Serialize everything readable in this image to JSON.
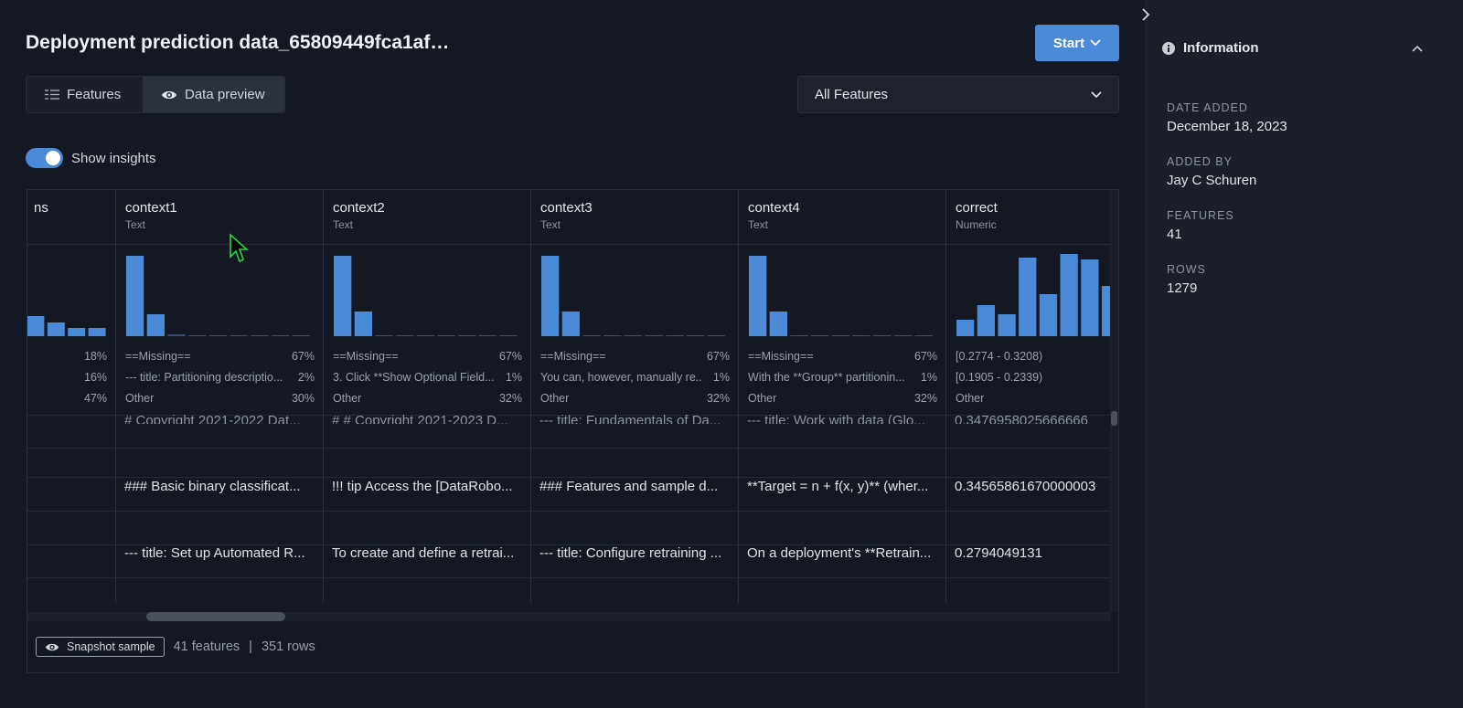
{
  "title": "Deployment prediction data_65809449fca1af…",
  "start_button": "Start",
  "tabs": [
    {
      "label": "Features",
      "icon": "list-icon"
    },
    {
      "label": "Data preview",
      "icon": "eye-icon"
    }
  ],
  "feature_filter": "All Features",
  "show_insights_label": "Show insights",
  "show_insights_on": true,
  "columns": [
    {
      "name": "ns",
      "type": "",
      "hist": [
        22,
        15,
        9,
        9
      ],
      "stats": [
        [
          "",
          "18%"
        ],
        [
          "",
          "16%"
        ],
        [
          "",
          "47%"
        ]
      ]
    },
    {
      "name": "context1",
      "type": "Text",
      "hist": [
        88,
        24,
        2,
        1,
        1,
        1,
        1,
        1,
        1
      ],
      "stats": [
        [
          "==Missing==",
          "67%"
        ],
        [
          "--- title: Partitioning descriptio...",
          "2%"
        ],
        [
          "Other",
          "30%"
        ]
      ]
    },
    {
      "name": "context2",
      "type": "Text",
      "hist": [
        88,
        27,
        1,
        1,
        1,
        1,
        1,
        1,
        1
      ],
      "stats": [
        [
          "==Missing==",
          "67%"
        ],
        [
          "3. Click **Show Optional Field...",
          "1%"
        ],
        [
          "Other",
          "32%"
        ]
      ]
    },
    {
      "name": "context3",
      "type": "Text",
      "hist": [
        88,
        27,
        1,
        1,
        1,
        1,
        1,
        1,
        1
      ],
      "stats": [
        [
          "==Missing==",
          "67%"
        ],
        [
          "You can, however, manually re...",
          "1%"
        ],
        [
          "Other",
          "32%"
        ]
      ]
    },
    {
      "name": "context4",
      "type": "Text",
      "hist": [
        88,
        27,
        1,
        1,
        1,
        1,
        1,
        1,
        1
      ],
      "stats": [
        [
          "==Missing==",
          "67%"
        ],
        [
          "With the **Group** partitionin...",
          "1%"
        ],
        [
          "Other",
          "32%"
        ]
      ]
    },
    {
      "name": "correct",
      "type": "Numeric",
      "hist": [
        18,
        34,
        24,
        86,
        46,
        90,
        84,
        55,
        15
      ],
      "stats": [
        [
          "[0.2774 - 0.3208)",
          ""
        ],
        [
          "[0.1905 - 0.2339)",
          ""
        ],
        [
          "Other",
          ""
        ]
      ]
    }
  ],
  "rows": [
    [
      "",
      "# Copyright 2021-2022 Dat...",
      "# # Copyright 2021-2023 D...",
      "--- title: Fundamentals of Da...",
      "--- title: Work with data (Glo...",
      "0.3476958025666666"
    ],
    [
      "",
      "",
      "",
      "",
      "",
      ""
    ],
    [
      "",
      "### Basic binary classificat...",
      "!!! tip Access the [DataRobo...",
      "### Features and sample d...",
      "**Target = n + f(x, y)** (wher...",
      "0.34565861670000003"
    ],
    [
      "",
      "",
      "",
      "",
      "",
      ""
    ],
    [
      "",
      "--- title: Set up Automated R...",
      "To create and define a retrai...",
      "--- title: Configure retraining ...",
      "On a deployment's **Retrain...",
      "0.2794049131"
    ],
    [
      "",
      "",
      "",
      "",
      "",
      ""
    ]
  ],
  "footer": {
    "snapshot_label": "Snapshot sample",
    "features_count": "41 features",
    "separator": "|",
    "rows_count": "351 rows"
  },
  "info": {
    "heading": "Information",
    "date_added_label": "DATE ADDED",
    "date_added": "December 18, 2023",
    "added_by_label": "ADDED BY",
    "added_by": "Jay C Schuren",
    "features_label": "FEATURES",
    "features": "41",
    "rows_label": "ROWS",
    "rows": "1279"
  },
  "colors": {
    "accent": "#4a8ad6",
    "bar": "#4a8ad6",
    "background": "#141822",
    "sidebar": "#1a1f29"
  }
}
